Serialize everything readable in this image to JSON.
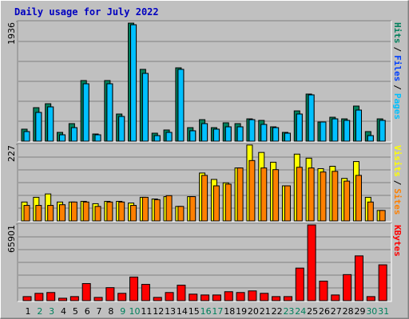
{
  "chart_data": {
    "type": "bar",
    "title": "Daily usage for July 2022",
    "categories": [
      "1",
      "2",
      "3",
      "4",
      "5",
      "6",
      "7",
      "8",
      "9",
      "10",
      "11",
      "12",
      "13",
      "14",
      "15",
      "16",
      "17",
      "18",
      "19",
      "20",
      "21",
      "22",
      "23",
      "24",
      "25",
      "26",
      "27",
      "28",
      "29",
      "30",
      "31"
    ],
    "category_colors": [
      "#000000",
      "#00805c",
      "#00805c",
      "#000000",
      "#000000",
      "#000000",
      "#000000",
      "#000000",
      "#00805c",
      "#00805c",
      "#000000",
      "#000000",
      "#000000",
      "#000000",
      "#000000",
      "#00805c",
      "#00805c",
      "#000000",
      "#000000",
      "#000000",
      "#000000",
      "#000000",
      "#00805c",
      "#00805c",
      "#000000",
      "#000000",
      "#000000",
      "#000000",
      "#000000",
      "#00805c",
      "#00805c"
    ],
    "legend_separator": "/",
    "panels": [
      {
        "ylim": [
          0,
          1936
        ],
        "yticks": [
          1936
        ],
        "series": [
          {
            "name": "Hits",
            "color": "#00805c",
            "values": [
              194,
              542,
              606,
              142,
              284,
              981,
              116,
              981,
              439,
              1910,
              1162,
              129,
              181,
              1187,
              219,
              348,
              219,
              297,
              284,
              361,
              336,
              232,
              142,
              490,
              762,
              310,
              387,
              361,
              568,
              155,
              361
            ]
          },
          {
            "name": "Files",
            "color": "#0040ff",
            "values": [
              155,
              465,
              555,
              103,
              219,
              929,
              103,
              929,
              400,
              1884,
              1097,
              90,
              142,
              1162,
              168,
              284,
              194,
              232,
              232,
              348,
              271,
              219,
              129,
              439,
              749,
              310,
              361,
              336,
              503,
              90,
              336
            ]
          },
          {
            "name": "Pages",
            "color": "#00c0ff",
            "values": [
              155,
              465,
              555,
              103,
              219,
              929,
              103,
              929,
              400,
              1884,
              1097,
              90,
              142,
              1162,
              168,
              284,
              194,
              232,
              232,
              348,
              271,
              219,
              129,
              439,
              749,
              310,
              361,
              336,
              503,
              90,
              336
            ]
          }
        ]
      },
      {
        "ylim": [
          0,
          227
        ],
        "yticks": [
          227
        ],
        "series": [
          {
            "name": "Visits",
            "color": "#ffff00",
            "values": [
              56,
              70,
              80,
              56,
              56,
              58,
              51,
              58,
              58,
              53,
              70,
              65,
              72,
              43,
              72,
              142,
              123,
              113,
              157,
              225,
              203,
              174,
              104,
              198,
              186,
              155,
              162,
              126,
              176,
              70,
              31
            ]
          },
          {
            "name": "Sites",
            "color": "#ff8000",
            "values": [
              46,
              46,
              46,
              48,
              56,
              56,
              43,
              56,
              56,
              46,
              70,
              63,
              75,
              43,
              72,
              135,
              104,
              109,
              157,
              179,
              157,
              152,
              104,
              159,
              157,
              145,
              147,
              118,
              135,
              56,
              31
            ]
          }
        ]
      },
      {
        "ylim": [
          0,
          65901
        ],
        "yticks": [
          65901
        ],
        "series": [
          {
            "name": "KBytes",
            "color": "#ff0000",
            "values": [
              3505,
              6310,
              7010,
              2100,
              3505,
              14720,
              2800,
              11215,
              6310,
              20330,
              14020,
              2800,
              7010,
              13320,
              5610,
              4900,
              4900,
              7710,
              7010,
              8410,
              6310,
              3505,
              3505,
              28040,
              65200,
              16825,
              4900,
              22430,
              38550,
              3505,
              30850
            ]
          }
        ]
      }
    ]
  }
}
